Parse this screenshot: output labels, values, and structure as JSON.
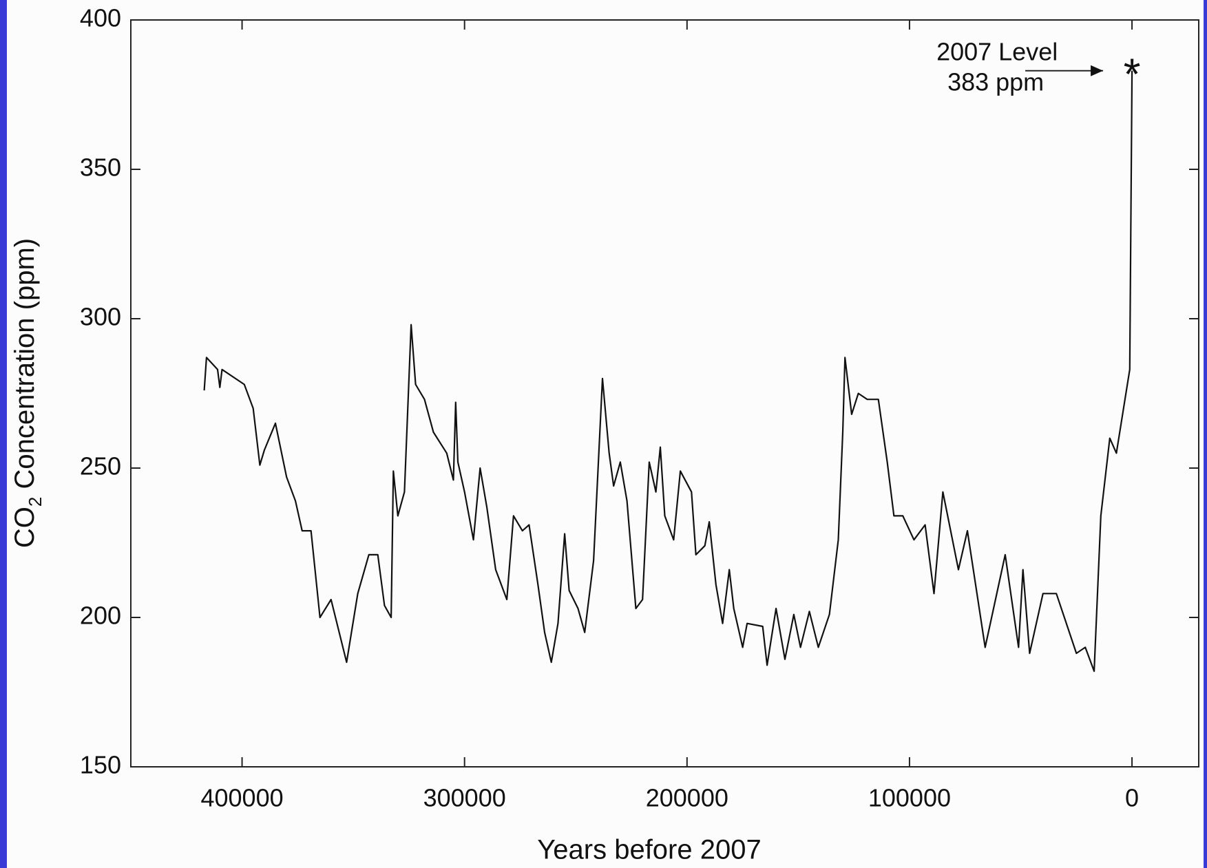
{
  "chart_data": {
    "type": "line",
    "x_label": "Years before 2007",
    "y_label": {
      "prefix": "CO",
      "subscript": "2",
      "suffix": " Concentration (ppm)"
    },
    "xlim": [
      450000,
      -30000
    ],
    "xticks": [
      400000,
      300000,
      200000,
      100000,
      0
    ],
    "ylim": [
      150,
      400
    ],
    "yticks": [
      150,
      200,
      250,
      300,
      350,
      400
    ],
    "series": [
      {
        "color": "#111111",
        "x": [
          417000,
          416000,
          411000,
          410000,
          409000,
          399000,
          395000,
          392000,
          390000,
          385000,
          380000,
          376000,
          373000,
          369000,
          365000,
          360000,
          353000,
          348000,
          343000,
          339000,
          336000,
          333000,
          332000,
          330000,
          327000,
          324000,
          322000,
          318000,
          314000,
          308000,
          305000,
          304000,
          303000,
          300000,
          296000,
          293000,
          290000,
          286000,
          281000,
          278000,
          274000,
          271000,
          267000,
          264000,
          261000,
          258000,
          255000,
          253000,
          249000,
          246000,
          242000,
          238000,
          235000,
          233000,
          230000,
          227000,
          223000,
          220000,
          217000,
          214000,
          212000,
          210000,
          206000,
          203000,
          198000,
          196000,
          192000,
          190000,
          187000,
          184000,
          181000,
          179000,
          175000,
          173000,
          166000,
          164000,
          160000,
          156000,
          152000,
          149000,
          145000,
          141000,
          136000,
          132000,
          130000,
          129000,
          126000,
          123000,
          119000,
          114000,
          110000,
          107000,
          103000,
          98000,
          93000,
          89000,
          85000,
          78000,
          74000,
          66000,
          57000,
          51000,
          49000,
          46000,
          40000,
          34000,
          25000,
          21000,
          17000,
          14000,
          10000,
          7000,
          1000,
          0
        ],
        "values": [
          276,
          287,
          283,
          277,
          283,
          278,
          270,
          251,
          256,
          265,
          247,
          239,
          229,
          229,
          200,
          206,
          185,
          208,
          221,
          221,
          204,
          200,
          249,
          234,
          242,
          298,
          278,
          273,
          262,
          255,
          246,
          272,
          252,
          242,
          226,
          250,
          237,
          216,
          206,
          234,
          229,
          231,
          211,
          195,
          185,
          198,
          228,
          209,
          203,
          195,
          219,
          280,
          255,
          244,
          252,
          239,
          203,
          206,
          252,
          242,
          257,
          234,
          226,
          249,
          242,
          221,
          224,
          232,
          211,
          198,
          216,
          203,
          190,
          198,
          197,
          184,
          203,
          186,
          201,
          190,
          202,
          190,
          201,
          226,
          262,
          287,
          268,
          275,
          273,
          273,
          252,
          234,
          234,
          226,
          231,
          208,
          242,
          216,
          229,
          190,
          221,
          190,
          216,
          188,
          208,
          208,
          188,
          190,
          182,
          234,
          260,
          255,
          283,
          383
        ]
      }
    ],
    "annotation": {
      "lines": [
        "2007 Level",
        "383 ppm"
      ],
      "x": 0,
      "y": 383
    }
  }
}
